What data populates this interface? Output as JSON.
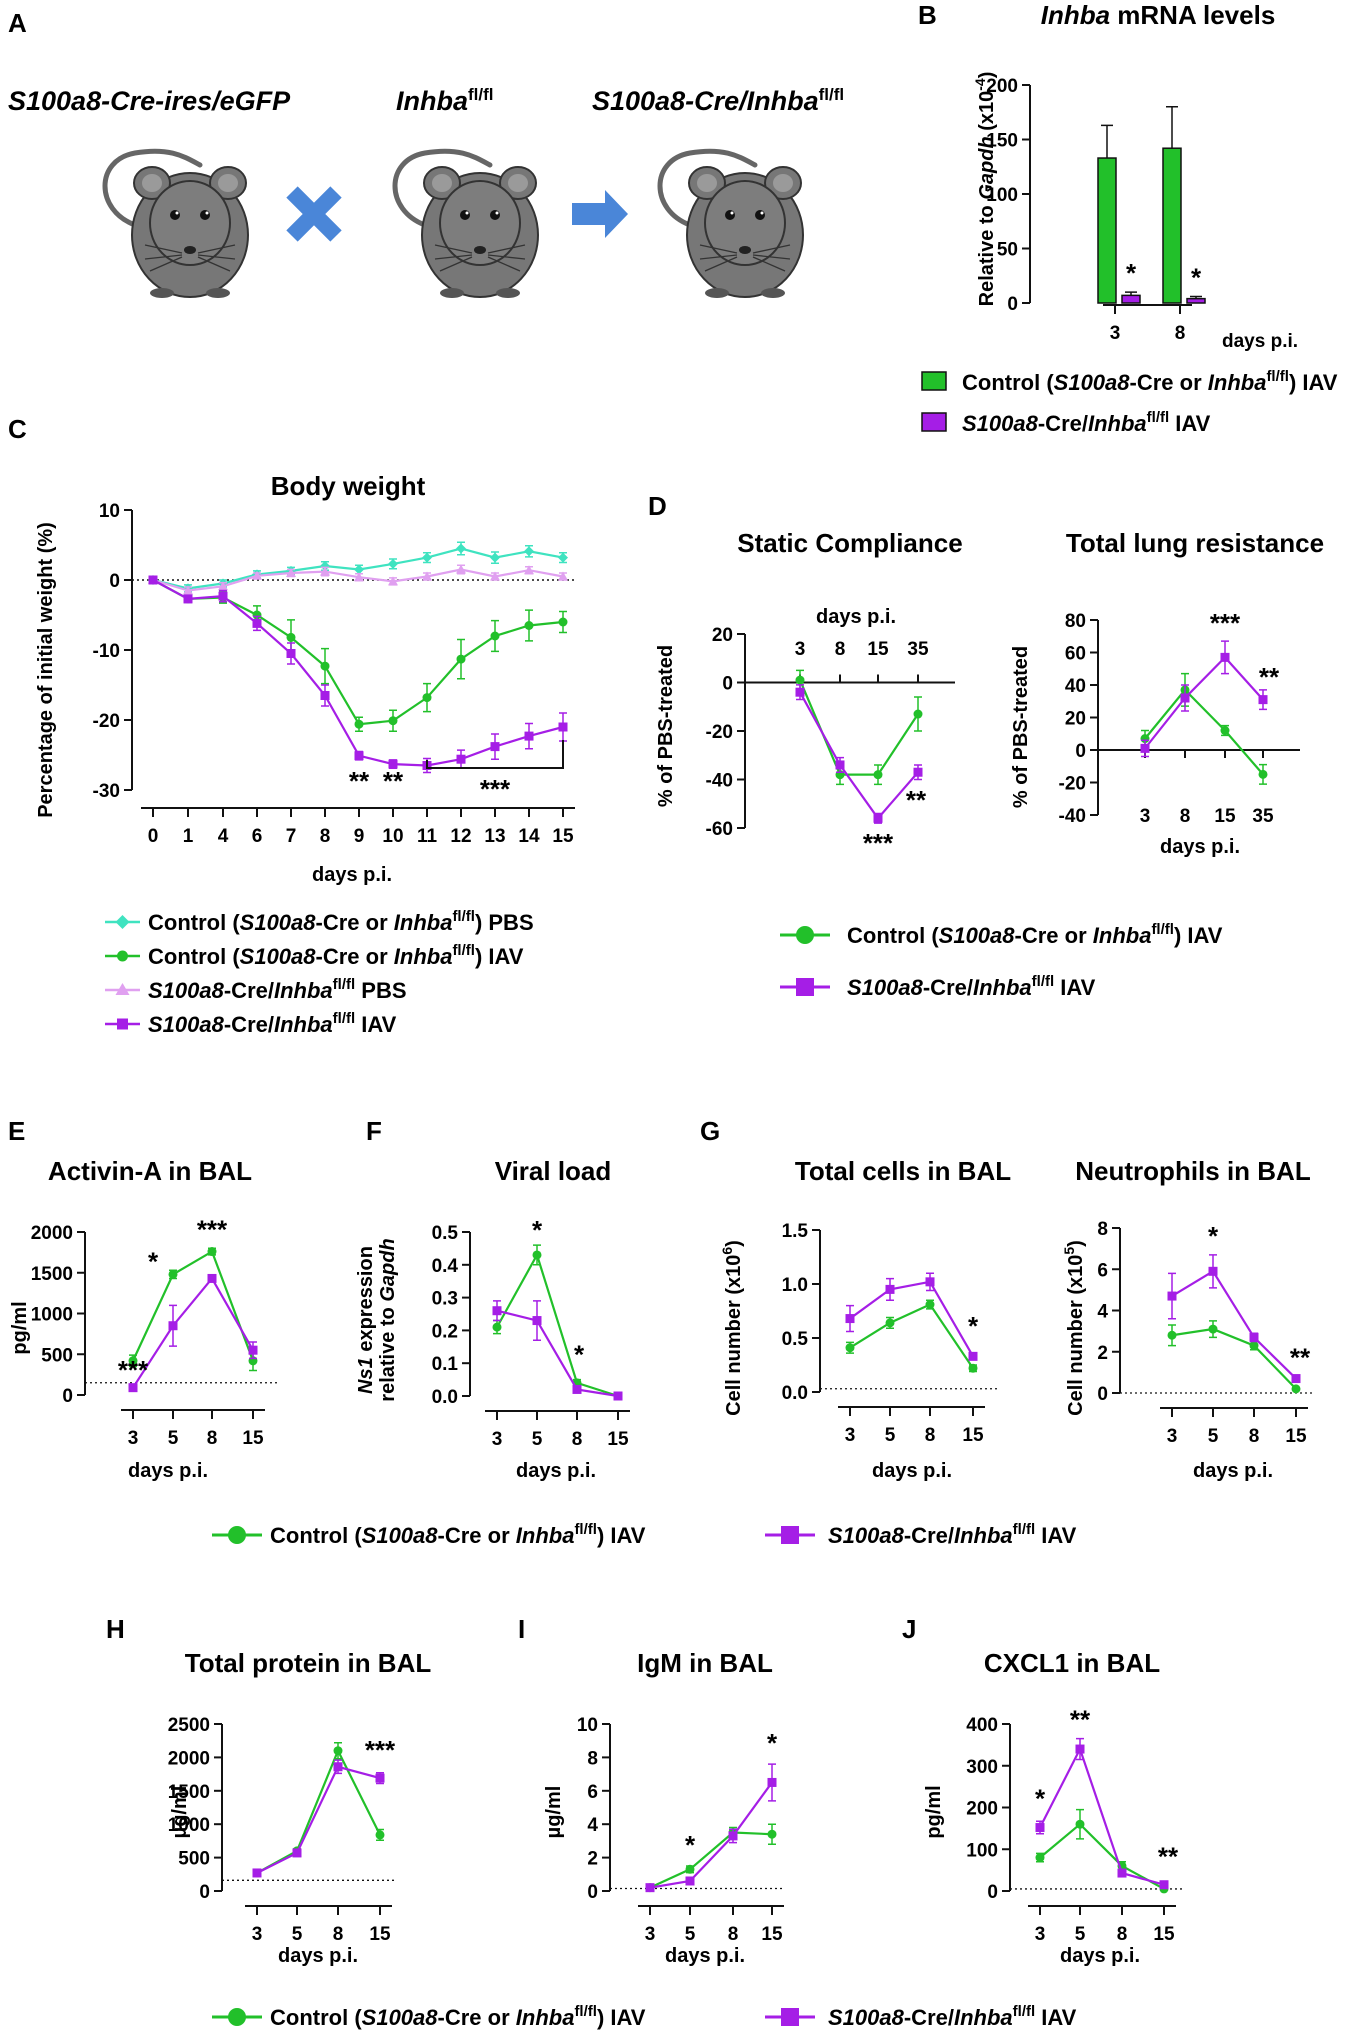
{
  "colors": {
    "control_iav": "#22c02a",
    "mutant_iav": "#a51ee6",
    "control_pbs": "#3fe3c0",
    "mutant_pbs": "#e0a0f0",
    "arrow": "#4a86d8",
    "mouse": "#777777"
  },
  "panel_labels": {
    "A": "A",
    "B": "B",
    "C": "C",
    "D": "D",
    "E": "E",
    "F": "F",
    "G": "G",
    "H": "H",
    "I": "I",
    "J": "J"
  },
  "panel_a": {
    "mouse1_label": "S100a8-Cre-ires/eGFP",
    "mouse2_label": "Inhba",
    "mouse2_sup": "fl/fl",
    "mouse3_label_pre": "S100a8-Cre/Inhba",
    "mouse3_sup": "fl/fl"
  },
  "legend_ctrl": {
    "pre": "Control (",
    "it1": "S100a8",
    "mid": "-Cre or ",
    "it2": "Inhba",
    "sup": "fl/fl",
    "post": ") IAV"
  },
  "legend_ctrl_pbs": {
    "pre": "Control (",
    "it1": "S100a8",
    "mid": "-Cre or ",
    "it2": "Inhba",
    "sup": "fl/fl",
    "post": ") PBS"
  },
  "legend_mut": {
    "it1": "S100a8",
    "mid": "-Cre/",
    "it2": "Inhba",
    "sup": "fl/fl",
    "post": " IAV"
  },
  "legend_mut_pbs": {
    "it1": "S100a8",
    "mid": "-Cre/",
    "it2": "Inhba",
    "sup": "fl/fl",
    "post": " PBS"
  },
  "chart_data": [
    {
      "id": "B",
      "type": "bar",
      "title_it": "Inhba",
      "title_rest": " mRNA levels",
      "ylabel_pre": "Relative to ",
      "ylabel_it": "Gapdh",
      "ylabel_post": " (x10",
      "ylabel_sup": "-4",
      "ylabel_close": ")",
      "categories": [
        "3",
        "8"
      ],
      "xlabel": "days p.i.",
      "ylim": [
        0,
        200
      ],
      "yticks": [
        "0",
        "50",
        "100",
        "150",
        "200"
      ],
      "series": [
        {
          "name": "Control IAV",
          "values": [
            133,
            142
          ],
          "errors": [
            30,
            38
          ]
        },
        {
          "name": "S100a8-Cre/Inhba fl/fl IAV",
          "values": [
            7,
            4
          ],
          "errors": [
            3,
            2
          ]
        }
      ],
      "stars": [
        "*",
        "*"
      ]
    },
    {
      "id": "C",
      "type": "line",
      "title": "Body weight",
      "ylabel": "Percentage of initial weight (%)",
      "xlabel": "days p.i.",
      "ylim": [
        -30,
        10
      ],
      "yticks": [
        "10",
        "0",
        "-10",
        "-20",
        "-30"
      ],
      "categories": [
        "0",
        "1",
        "4",
        "6",
        "7",
        "8",
        "9",
        "10",
        "11",
        "12",
        "13",
        "14",
        "15"
      ],
      "series": [
        {
          "name": "Control PBS",
          "values": [
            0,
            -1.2,
            -0.5,
            0.8,
            1.3,
            2,
            1.5,
            2.3,
            3.2,
            4.5,
            3.2,
            4.1,
            3.2
          ],
          "errors": [
            0.3,
            0.5,
            0.5,
            0.5,
            0.5,
            0.6,
            0.6,
            0.7,
            0.7,
            0.9,
            0.8,
            0.8,
            0.7
          ]
        },
        {
          "name": "Control IAV",
          "values": [
            0,
            -2.7,
            -2.5,
            -5,
            -8.2,
            -12.3,
            -20.6,
            -20.1,
            -16.8,
            -11.3,
            -8,
            -6.5,
            -6
          ],
          "errors": [
            0.3,
            0.5,
            0.8,
            1.3,
            2.5,
            2.5,
            1,
            1.5,
            2,
            2.8,
            2.2,
            2.2,
            1.5
          ]
        },
        {
          "name": "Mutant PBS",
          "values": [
            0,
            -1.5,
            -0.9,
            0.6,
            1,
            1.2,
            0.4,
            -0.2,
            0.5,
            1.5,
            0.5,
            1.4,
            0.5
          ],
          "errors": [
            0.3,
            0.5,
            0.5,
            0.4,
            0.5,
            0.6,
            0.5,
            0.5,
            0.5,
            0.6,
            0.5,
            0.5,
            0.5
          ]
        },
        {
          "name": "Mutant IAV",
          "values": [
            0,
            -2.7,
            -2.3,
            -6.2,
            -10.5,
            -16.5,
            -25.1,
            -26.3,
            -26.5,
            -25.6,
            -23.8,
            -22.3,
            -21
          ],
          "errors": [
            0.3,
            0.5,
            0.8,
            1,
            1.5,
            1.5,
            0.6,
            0.6,
            1,
            1.3,
            1.8,
            1.8,
            2
          ]
        }
      ],
      "annotations": [
        {
          "at": "9",
          "text": "**"
        },
        {
          "at": "10",
          "text": "**"
        },
        {
          "at": "11-15",
          "text": "***"
        }
      ]
    },
    {
      "id": "D1",
      "type": "line",
      "title": "Static Compliance",
      "ylabel": "% of PBS-treated",
      "xlabel": "days p.i.",
      "ylim": [
        -60,
        20
      ],
      "yticks": [
        "20",
        "0",
        "-20",
        "-40",
        "-60"
      ],
      "categories": [
        "3",
        "8",
        "15",
        "35"
      ],
      "series": [
        {
          "name": "Control IAV",
          "values": [
            1,
            -38,
            -38,
            -13
          ],
          "errors": [
            4,
            4,
            4,
            7
          ]
        },
        {
          "name": "Mutant IAV",
          "values": [
            -4,
            -34,
            -56,
            -37
          ],
          "errors": [
            3,
            3,
            2,
            3
          ]
        }
      ],
      "stars": [
        "",
        "",
        "***",
        "**"
      ]
    },
    {
      "id": "D2",
      "type": "line",
      "title": "Total lung resistance",
      "ylabel": "% of PBS-treated",
      "xlabel": "days p.i.",
      "ylim": [
        -40,
        80
      ],
      "yticks": [
        "80",
        "60",
        "40",
        "20",
        "0",
        "-20",
        "-40"
      ],
      "categories": [
        "3",
        "8",
        "15",
        "35"
      ],
      "series": [
        {
          "name": "Control IAV",
          "values": [
            7,
            37,
            12,
            -15
          ],
          "errors": [
            5,
            10,
            3,
            6
          ]
        },
        {
          "name": "Mutant IAV",
          "values": [
            1,
            32,
            57,
            31
          ],
          "errors": [
            5,
            8,
            10,
            6
          ]
        }
      ],
      "stars": [
        "",
        "",
        "***",
        "**"
      ]
    },
    {
      "id": "E",
      "type": "line",
      "title": "Activin-A in BAL",
      "ylabel": "pg/ml",
      "xlabel": "days p.i.",
      "ylim": [
        0,
        2000
      ],
      "yticks": [
        "2000",
        "1500",
        "1000",
        "500",
        "0"
      ],
      "categories": [
        "3",
        "5",
        "8",
        "15"
      ],
      "baseline": 150,
      "series": [
        {
          "name": "Control IAV",
          "values": [
            420,
            1480,
            1760,
            420
          ],
          "errors": [
            70,
            50,
            40,
            120
          ]
        },
        {
          "name": "Mutant IAV",
          "values": [
            90,
            850,
            1430,
            550
          ],
          "errors": [
            30,
            250,
            40,
            100
          ]
        }
      ],
      "stars": [
        "***",
        "*",
        "***",
        ""
      ]
    },
    {
      "id": "F",
      "type": "line",
      "title": "Viral load",
      "ylabel_it": "Ns1",
      "ylabel_l1": " expression",
      "ylabel_l2_pre": "relative to ",
      "ylabel_l2_it": "Gapdh",
      "xlabel": "days p.i.",
      "ylim": [
        0,
        0.5
      ],
      "yticks": [
        "0.5",
        "0.4",
        "0.3",
        "0.2",
        "0.1",
        "0.0"
      ],
      "categories": [
        "3",
        "5",
        "8",
        "15"
      ],
      "series": [
        {
          "name": "Control IAV",
          "values": [
            0.21,
            0.43,
            0.04,
            0.0
          ],
          "errors": [
            0.02,
            0.03,
            0.01,
            0.0
          ]
        },
        {
          "name": "Mutant IAV",
          "values": [
            0.26,
            0.23,
            0.02,
            0.0
          ],
          "errors": [
            0.03,
            0.06,
            0.01,
            0.0
          ]
        }
      ],
      "stars": [
        "",
        "*",
        "*",
        ""
      ]
    },
    {
      "id": "G1",
      "type": "line",
      "title": "Total cells in BAL",
      "ylabel_pre": "Cell number (x10",
      "ylabel_sup": "6",
      "ylabel_close": ")",
      "xlabel": "days p.i.",
      "ylim": [
        0,
        1.5
      ],
      "yticks": [
        "1.5",
        "1.0",
        "0.5",
        "0.0"
      ],
      "categories": [
        "3",
        "5",
        "8",
        "15"
      ],
      "baseline": 0.03,
      "series": [
        {
          "name": "Control IAV",
          "values": [
            0.41,
            0.64,
            0.81,
            0.22
          ],
          "errors": [
            0.05,
            0.05,
            0.04,
            0.03
          ]
        },
        {
          "name": "Mutant IAV",
          "values": [
            0.68,
            0.95,
            1.02,
            0.33
          ],
          "errors": [
            0.12,
            0.1,
            0.08,
            0.03
          ]
        }
      ],
      "stars": [
        "",
        "",
        "",
        "*"
      ]
    },
    {
      "id": "G2",
      "type": "line",
      "title": "Neutrophils in BAL",
      "ylabel_pre": "Cell number (x10",
      "ylabel_sup": "5",
      "ylabel_close": ")",
      "xlabel": "days p.i.",
      "ylim": [
        0,
        8
      ],
      "yticks": [
        "8",
        "6",
        "4",
        "2",
        "0"
      ],
      "categories": [
        "3",
        "5",
        "8",
        "15"
      ],
      "baseline": 0,
      "series": [
        {
          "name": "Control IAV",
          "values": [
            2.8,
            3.1,
            2.3,
            0.2
          ],
          "errors": [
            0.5,
            0.4,
            0.2,
            0.05
          ]
        },
        {
          "name": "Mutant IAV",
          "values": [
            4.7,
            5.9,
            2.7,
            0.7
          ],
          "errors": [
            1.1,
            0.8,
            0.2,
            0.1
          ]
        }
      ],
      "stars": [
        "",
        "*",
        "",
        "**"
      ]
    },
    {
      "id": "H",
      "type": "line",
      "title": "Total protein in BAL",
      "ylabel": "µg/ml",
      "xlabel": "days p.i.",
      "ylim": [
        0,
        2500
      ],
      "yticks": [
        "2500",
        "2000",
        "1500",
        "1000",
        "500",
        "0"
      ],
      "categories": [
        "3",
        "5",
        "8",
        "15"
      ],
      "baseline": 160,
      "series": [
        {
          "name": "Control IAV",
          "values": [
            270,
            600,
            2100,
            840
          ],
          "errors": [
            20,
            30,
            120,
            80
          ]
        },
        {
          "name": "Mutant IAV",
          "values": [
            270,
            570,
            1860,
            1690
          ],
          "errors": [
            20,
            30,
            100,
            80
          ]
        }
      ],
      "stars": [
        "",
        "",
        "",
        "***"
      ]
    },
    {
      "id": "I",
      "type": "line",
      "title": "IgM in BAL",
      "ylabel": "µg/ml",
      "xlabel": "days p.i.",
      "ylim": [
        0,
        10
      ],
      "yticks": [
        "10",
        "8",
        "6",
        "4",
        "2",
        "0"
      ],
      "categories": [
        "3",
        "5",
        "8",
        "15"
      ],
      "baseline": 0.15,
      "series": [
        {
          "name": "Control IAV",
          "values": [
            0.2,
            1.3,
            3.5,
            3.4
          ],
          "errors": [
            0.05,
            0.2,
            0.3,
            0.6
          ]
        },
        {
          "name": "Mutant IAV",
          "values": [
            0.2,
            0.6,
            3.3,
            6.5
          ],
          "errors": [
            0.05,
            0.1,
            0.4,
            1.1
          ]
        }
      ],
      "stars": [
        "",
        "*",
        "",
        "*"
      ]
    },
    {
      "id": "J",
      "type": "line",
      "title": "CXCL1 in BAL",
      "ylabel": "pg/ml",
      "xlabel": "days p.i.",
      "ylim": [
        0,
        400
      ],
      "yticks": [
        "400",
        "300",
        "200",
        "100",
        "0"
      ],
      "categories": [
        "3",
        "5",
        "8",
        "15"
      ],
      "baseline": 5,
      "series": [
        {
          "name": "Control IAV",
          "values": [
            80,
            160,
            60,
            5
          ],
          "errors": [
            10,
            35,
            10,
            3
          ]
        },
        {
          "name": "Mutant IAV",
          "values": [
            152,
            340,
            43,
            15
          ],
          "errors": [
            15,
            25,
            6,
            3
          ]
        }
      ],
      "stars": [
        "*",
        "**",
        "",
        "**"
      ]
    }
  ]
}
